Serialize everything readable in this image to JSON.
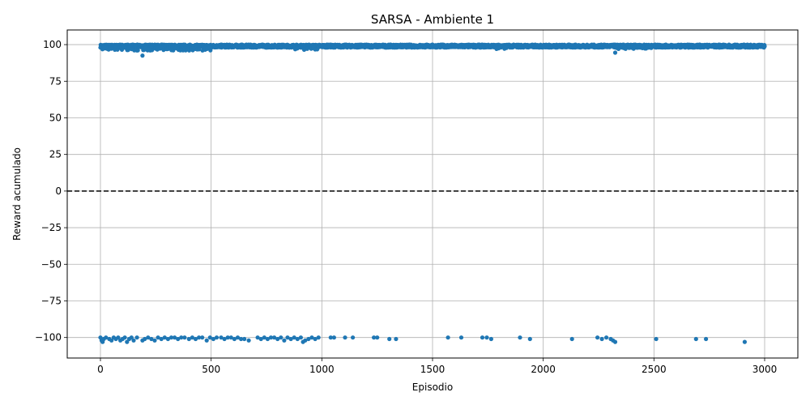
{
  "chart_data": {
    "type": "scatter",
    "title": "SARSA - Ambiente 1",
    "xlabel": "Episodio",
    "ylabel": "Reward acumulado",
    "xlim": [
      -150,
      3150
    ],
    "ylim": [
      -114,
      110
    ],
    "xticks": [
      0,
      500,
      1000,
      1500,
      2000,
      2500,
      3000
    ],
    "yticks": [
      100,
      75,
      50,
      25,
      0,
      -25,
      -50,
      -75,
      -100
    ],
    "grid": true,
    "legend": "none",
    "point_color": "#1f77b4",
    "reference_line": {
      "y": 0,
      "style": "dashed",
      "color": "#000000"
    },
    "series": [
      {
        "bands": [
          {
            "x_from": 0,
            "x_to": 3000,
            "y_min": 98,
            "y_max": 100,
            "density": "dense"
          },
          {
            "x_from": 5,
            "x_to": 500,
            "y_min": 96,
            "y_max": 98,
            "density": "frequent"
          },
          {
            "x_from": 880,
            "x_to": 1000,
            "y_min": 96.5,
            "y_max": 98,
            "density": "sparse"
          },
          {
            "x_from": 1780,
            "x_to": 1850,
            "y_min": 97,
            "y_max": 98,
            "density": "sparse"
          },
          {
            "x_from": 2300,
            "x_to": 2500,
            "y_min": 97,
            "y_max": 98,
            "density": "frequent"
          }
        ],
        "outliers": [
          {
            "x": 190,
            "y": 92.5
          },
          {
            "x": 225,
            "y": 96
          },
          {
            "x": 920,
            "y": 96.5
          },
          {
            "x": 2325,
            "y": 94.5
          }
        ],
        "negative_points": [
          {
            "x": 0,
            "y": -100
          },
          {
            "x": 5,
            "y": -102
          },
          {
            "x": 10,
            "y": -103
          },
          {
            "x": 15,
            "y": -101
          },
          {
            "x": 25,
            "y": -100
          },
          {
            "x": 40,
            "y": -101
          },
          {
            "x": 50,
            "y": -102
          },
          {
            "x": 60,
            "y": -100
          },
          {
            "x": 70,
            "y": -101
          },
          {
            "x": 80,
            "y": -100
          },
          {
            "x": 90,
            "y": -102
          },
          {
            "x": 100,
            "y": -101
          },
          {
            "x": 110,
            "y": -100
          },
          {
            "x": 120,
            "y": -103
          },
          {
            "x": 130,
            "y": -101
          },
          {
            "x": 140,
            "y": -100
          },
          {
            "x": 150,
            "y": -102
          },
          {
            "x": 165,
            "y": -100
          },
          {
            "x": 190,
            "y": -102
          },
          {
            "x": 200,
            "y": -101
          },
          {
            "x": 215,
            "y": -100
          },
          {
            "x": 230,
            "y": -101
          },
          {
            "x": 245,
            "y": -102
          },
          {
            "x": 260,
            "y": -100
          },
          {
            "x": 275,
            "y": -101
          },
          {
            "x": 290,
            "y": -100
          },
          {
            "x": 305,
            "y": -101
          },
          {
            "x": 320,
            "y": -100
          },
          {
            "x": 335,
            "y": -100
          },
          {
            "x": 350,
            "y": -101
          },
          {
            "x": 365,
            "y": -100
          },
          {
            "x": 380,
            "y": -100
          },
          {
            "x": 400,
            "y": -101
          },
          {
            "x": 415,
            "y": -100
          },
          {
            "x": 430,
            "y": -101
          },
          {
            "x": 445,
            "y": -100
          },
          {
            "x": 460,
            "y": -100
          },
          {
            "x": 480,
            "y": -102
          },
          {
            "x": 495,
            "y": -100
          },
          {
            "x": 510,
            "y": -101
          },
          {
            "x": 525,
            "y": -100
          },
          {
            "x": 545,
            "y": -100
          },
          {
            "x": 560,
            "y": -101
          },
          {
            "x": 575,
            "y": -100
          },
          {
            "x": 590,
            "y": -100
          },
          {
            "x": 605,
            "y": -101
          },
          {
            "x": 620,
            "y": -100
          },
          {
            "x": 635,
            "y": -101
          },
          {
            "x": 650,
            "y": -101
          },
          {
            "x": 670,
            "y": -102
          },
          {
            "x": 710,
            "y": -100
          },
          {
            "x": 725,
            "y": -101
          },
          {
            "x": 740,
            "y": -100
          },
          {
            "x": 755,
            "y": -101
          },
          {
            "x": 770,
            "y": -100
          },
          {
            "x": 785,
            "y": -100
          },
          {
            "x": 800,
            "y": -101
          },
          {
            "x": 815,
            "y": -100
          },
          {
            "x": 830,
            "y": -102
          },
          {
            "x": 845,
            "y": -100
          },
          {
            "x": 860,
            "y": -101
          },
          {
            "x": 875,
            "y": -100
          },
          {
            "x": 890,
            "y": -101
          },
          {
            "x": 905,
            "y": -100
          },
          {
            "x": 915,
            "y": -103
          },
          {
            "x": 925,
            "y": -102
          },
          {
            "x": 940,
            "y": -101
          },
          {
            "x": 955,
            "y": -100
          },
          {
            "x": 970,
            "y": -101
          },
          {
            "x": 985,
            "y": -100
          },
          {
            "x": 1040,
            "y": -100
          },
          {
            "x": 1055,
            "y": -100
          },
          {
            "x": 1105,
            "y": -100
          },
          {
            "x": 1140,
            "y": -100
          },
          {
            "x": 1235,
            "y": -100
          },
          {
            "x": 1250,
            "y": -100
          },
          {
            "x": 1305,
            "y": -101
          },
          {
            "x": 1335,
            "y": -101
          },
          {
            "x": 1570,
            "y": -100
          },
          {
            "x": 1630,
            "y": -100
          },
          {
            "x": 1725,
            "y": -100
          },
          {
            "x": 1745,
            "y": -100
          },
          {
            "x": 1765,
            "y": -101
          },
          {
            "x": 1895,
            "y": -100
          },
          {
            "x": 1940,
            "y": -101
          },
          {
            "x": 2130,
            "y": -101
          },
          {
            "x": 2245,
            "y": -100
          },
          {
            "x": 2265,
            "y": -101
          },
          {
            "x": 2285,
            "y": -100
          },
          {
            "x": 2305,
            "y": -101
          },
          {
            "x": 2315,
            "y": -102
          },
          {
            "x": 2325,
            "y": -103
          },
          {
            "x": 2510,
            "y": -101
          },
          {
            "x": 2690,
            "y": -101
          },
          {
            "x": 2735,
            "y": -101
          },
          {
            "x": 2910,
            "y": -103
          }
        ]
      }
    ]
  }
}
